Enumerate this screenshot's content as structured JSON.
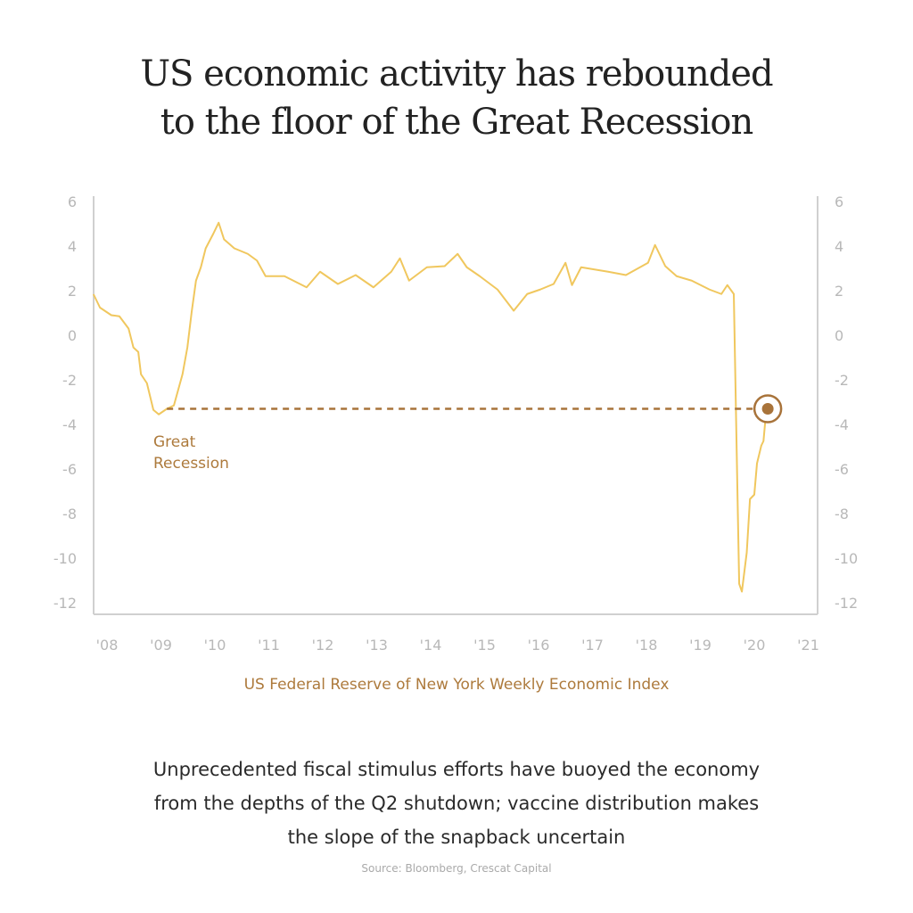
{
  "chart_data": {
    "type": "line",
    "title": [
      "US economic activity has rebounded",
      "to the floor of the Great Recession"
    ],
    "xlabel": "US Federal Reserve of New York Weekly Economic Index",
    "ylabel": "",
    "xlim": [
      2007.75,
      2021.25
    ],
    "ylim": [
      -12.5,
      6.2
    ],
    "y_ticks": [
      6,
      4,
      2,
      0,
      -2,
      -4,
      -6,
      -8,
      -10,
      -12
    ],
    "x_ticks": [
      2008,
      2009,
      2010,
      2011,
      2012,
      2013,
      2014,
      2015,
      2016,
      2017,
      2018,
      2019,
      2020,
      2021
    ],
    "x_tick_labels": [
      "'08",
      "'09",
      "'10",
      "'11",
      "'12",
      "'13",
      "'14",
      "'15",
      "'16",
      "'17",
      "'18",
      "'19",
      "'20",
      "'21"
    ],
    "grid": false,
    "axes": "left, right and bottom",
    "line_color": "#f0c75e",
    "accent_color": "#a8733a",
    "series": [
      {
        "x": [
          2007.75,
          2007.87,
          2008.08,
          2008.23,
          2008.4,
          2008.49,
          2008.58,
          2008.63,
          2008.74,
          2008.86,
          2008.96,
          2009.11,
          2009.24,
          2009.4,
          2009.49,
          2009.57,
          2009.65,
          2009.74,
          2009.83,
          2009.97,
          2010.07,
          2010.17,
          2010.36,
          2010.61,
          2010.78,
          2010.94,
          2011.29,
          2011.7,
          2011.95,
          2012.28,
          2012.61,
          2012.94,
          2013.27,
          2013.43,
          2013.6,
          2013.93,
          2014.26,
          2014.5,
          2014.67,
          2014.91,
          2015.24,
          2015.54,
          2015.79,
          2016.03,
          2016.28,
          2016.5,
          2016.62,
          2016.79,
          2017.29,
          2017.62,
          2018.03,
          2018.16,
          2018.35,
          2018.56,
          2018.84,
          2019.17,
          2019.39,
          2019.5,
          2019.62,
          2019.69,
          2019.72,
          2019.77,
          2019.86,
          2019.92,
          2020.0,
          2020.05,
          2020.13,
          2020.17,
          2020.2,
          2020.25
        ],
        "y": [
          1.84,
          1.24,
          0.9,
          0.85,
          0.3,
          -0.55,
          -0.75,
          -1.75,
          -2.15,
          -3.35,
          -3.55,
          -3.3,
          -3.15,
          -1.75,
          -0.55,
          1.05,
          2.45,
          3.05,
          3.9,
          4.55,
          5.05,
          4.3,
          3.9,
          3.65,
          3.35,
          2.65,
          2.65,
          2.15,
          2.85,
          2.3,
          2.7,
          2.15,
          2.85,
          3.45,
          2.45,
          3.05,
          3.1,
          3.65,
          3.05,
          2.65,
          2.05,
          1.1,
          1.85,
          2.05,
          2.3,
          3.25,
          2.25,
          3.05,
          2.85,
          2.7,
          3.25,
          4.05,
          3.1,
          2.65,
          2.45,
          2.05,
          1.85,
          2.25,
          1.85,
          -7.35,
          -11.15,
          -11.5,
          -9.75,
          -7.35,
          -7.15,
          -5.75,
          -4.95,
          -4.75,
          -3.95,
          -3.3
        ]
      }
    ],
    "reference_line": {
      "y": -3.3,
      "x_from": 2009.11,
      "x_to": 2020.25,
      "style": "dashed"
    },
    "highlight_point": {
      "x": 2020.25,
      "y": -3.3
    },
    "annotations": [
      {
        "text_lines": [
          "Great",
          "Recession"
        ]
      }
    ]
  },
  "caption": [
    "Unprecedented fiscal stimulus efforts have buoyed the economy",
    "from the depths of the Q2 shutdown; vaccine distribution makes",
    "the slope of the snapback uncertain"
  ],
  "source": "Source: Bloomberg, Crescat Capital"
}
